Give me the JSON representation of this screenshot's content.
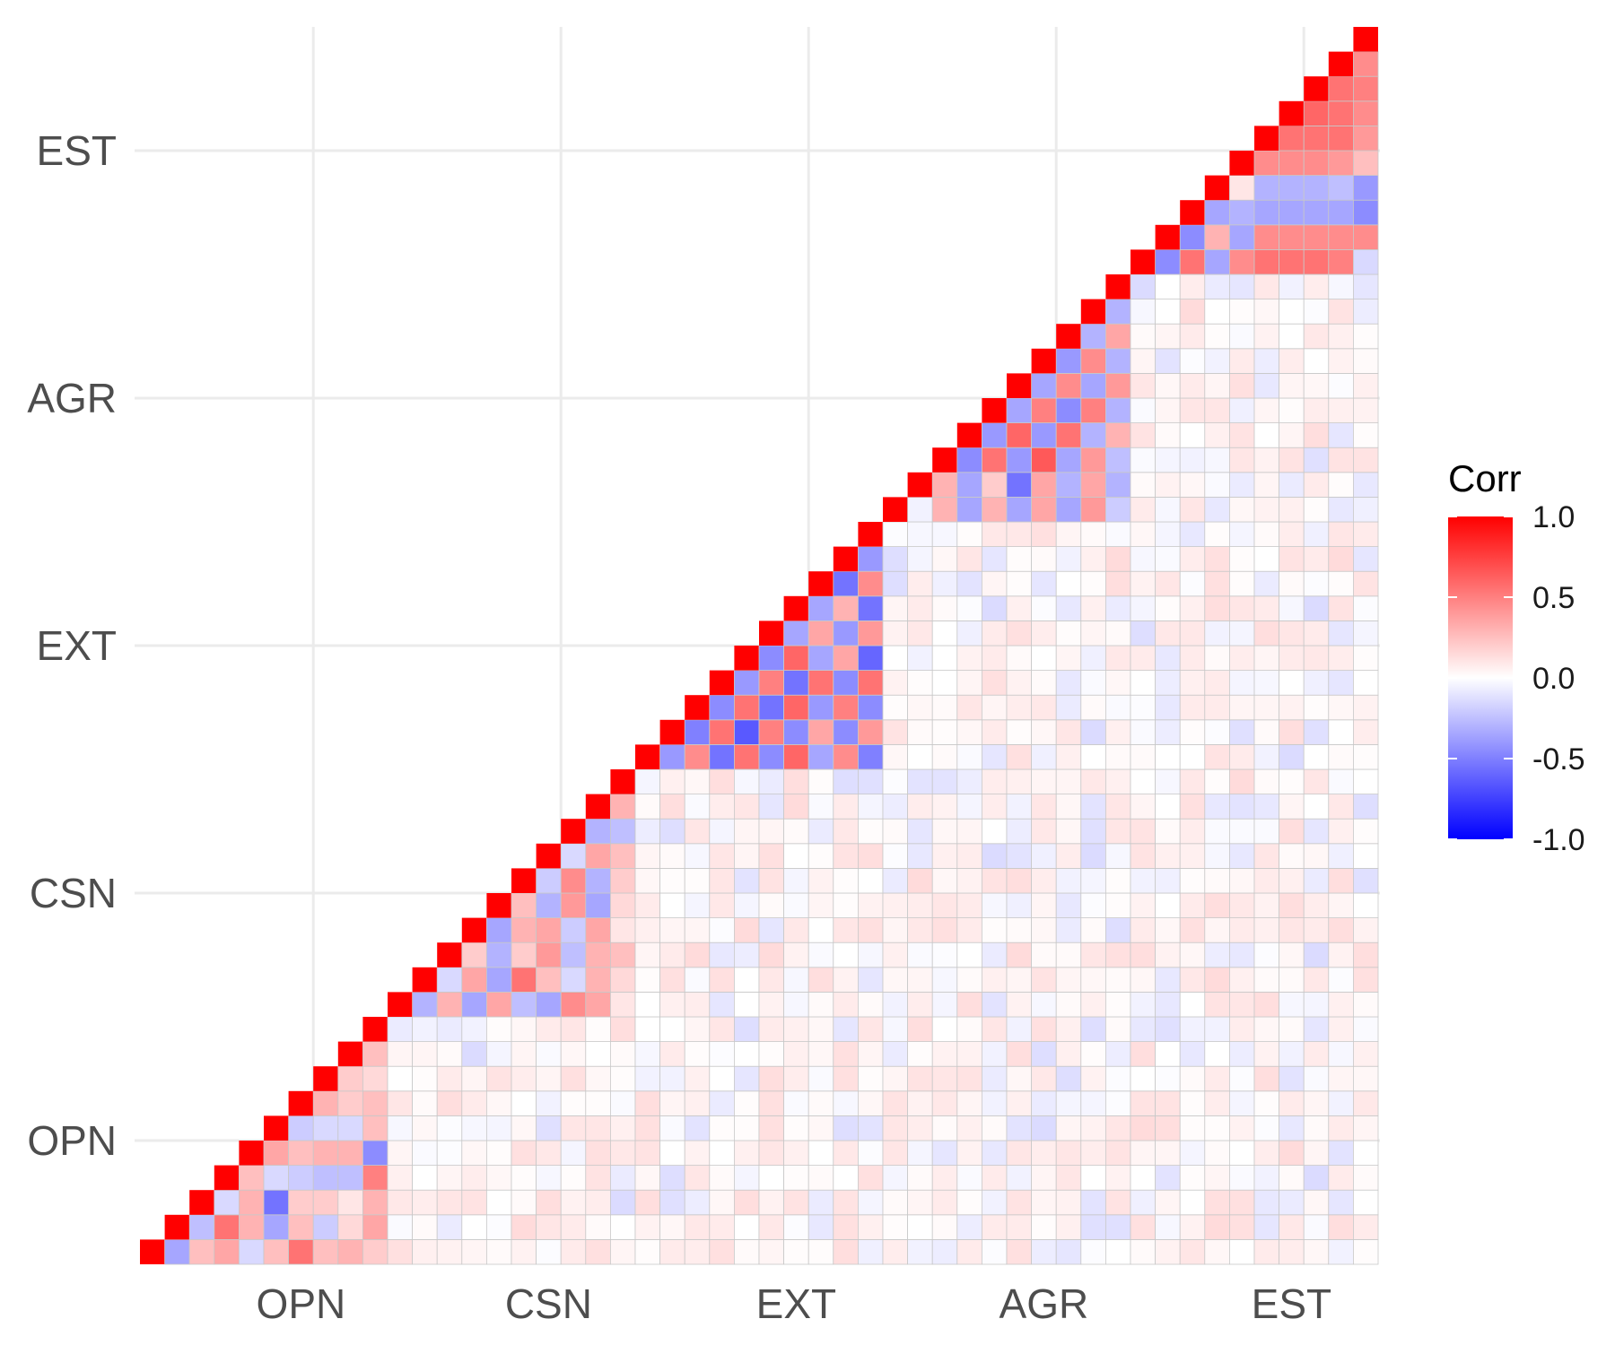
{
  "chart_data": {
    "type": "heatmap",
    "title": "",
    "xlabel": "",
    "ylabel": "",
    "layout": "lower-triangle correlation matrix (diagonal at bottom-left to top-right)",
    "n_items": 50,
    "groups": [
      "OPN",
      "CSN",
      "EXT",
      "AGR",
      "EST"
    ],
    "group_size": 10,
    "diagonal_value": 1.0,
    "grid": true,
    "legend": {
      "title": "Corr",
      "position": "right",
      "ticks": [
        "1.0",
        "0.5",
        "0.0",
        "-0.5",
        "-1.0"
      ],
      "tick_values": [
        1.0,
        0.5,
        0.0,
        -0.5,
        -1.0
      ],
      "colors": {
        "low": "#0000ff",
        "mid": "#ffffff",
        "high": "#ff0000"
      }
    },
    "within_block_correlations": {
      "OPN": [
        [
          -0.35,
          0.25,
          0.35,
          -0.15,
          0.25,
          0.55,
          0.25,
          0.3,
          0.2
        ],
        [
          -0.25,
          0.55,
          0.3,
          -0.35,
          0.25,
          -0.2,
          0.15,
          0.35
        ],
        [
          -0.15,
          0.3,
          -0.55,
          0.2,
          0.2,
          0.1,
          0.3
        ],
        [
          0.25,
          -0.15,
          -0.2,
          -0.25,
          -0.25,
          0.5
        ],
        [
          0.35,
          0.25,
          0.3,
          0.3,
          -0.45
        ],
        [
          -0.2,
          -0.15,
          -0.15,
          0.25
        ],
        [
          0.3,
          0.2,
          0.25
        ],
        [
          0.2,
          0.15
        ],
        [
          0.25
        ]
      ],
      "CSN": [
        [
          -0.3,
          0.3,
          -0.35,
          0.35,
          -0.25,
          -0.35,
          0.45,
          0.35,
          0.1
        ],
        [
          -0.15,
          0.35,
          -0.35,
          0.55,
          0.25,
          -0.15,
          0.3,
          0.15
        ],
        [
          0.2,
          -0.3,
          0.2,
          0.4,
          -0.25,
          0.3,
          0.25
        ],
        [
          -0.35,
          0.3,
          0.35,
          -0.2,
          0.35,
          0.1
        ],
        [
          0.25,
          -0.3,
          0.4,
          -0.35,
          0.15
        ],
        [
          -0.2,
          0.45,
          -0.3,
          0.2
        ],
        [
          -0.15,
          0.35,
          0.25
        ],
        [
          -0.3,
          -0.25
        ],
        [
          0.3
        ]
      ],
      "EXT": [
        [
          -0.4,
          0.45,
          -0.55,
          0.55,
          -0.45,
          0.6,
          -0.35,
          0.45,
          -0.5
        ],
        [
          -0.5,
          0.55,
          -0.65,
          0.5,
          -0.45,
          0.35,
          -0.45,
          0.4
        ],
        [
          -0.45,
          0.55,
          -0.55,
          0.6,
          -0.4,
          0.5,
          -0.45
        ],
        [
          -0.4,
          0.5,
          -0.55,
          0.55,
          -0.45,
          0.55
        ],
        [
          -0.45,
          0.6,
          -0.35,
          0.35,
          -0.6
        ],
        [
          -0.35,
          0.35,
          -0.4,
          0.4
        ],
        [
          -0.35,
          0.3,
          -0.55
        ],
        [
          -0.55,
          0.45
        ],
        [
          -0.4
        ]
      ],
      "AGR": [
        [
          -0.05,
          0.3,
          -0.35,
          0.3,
          -0.35,
          0.35,
          -0.35,
          0.4,
          -0.2
        ],
        [
          0.3,
          -0.35,
          0.2,
          -0.55,
          0.35,
          -0.3,
          0.35,
          -0.3
        ],
        [
          -0.45,
          0.55,
          -0.4,
          0.65,
          -0.35,
          0.4,
          -0.25
        ],
        [
          -0.4,
          0.6,
          -0.4,
          0.55,
          -0.3,
          0.3
        ],
        [
          -0.35,
          0.5,
          -0.45,
          0.5,
          -0.3
        ],
        [
          -0.35,
          0.45,
          -0.35,
          0.4
        ],
        [
          -0.4,
          0.45,
          -0.3
        ],
        [
          -0.3,
          0.35
        ],
        [
          -0.3
        ]
      ],
      "EST": [
        [
          -0.45,
          0.55,
          -0.35,
          0.45,
          0.55,
          0.55,
          0.55,
          0.5,
          -0.15
        ],
        [
          -0.45,
          0.3,
          -0.35,
          0.45,
          0.45,
          0.45,
          0.45,
          0.45
        ],
        [
          -0.35,
          -0.3,
          -0.35,
          -0.35,
          -0.35,
          -0.35,
          -0.45
        ],
        [
          0.1,
          -0.3,
          -0.3,
          -0.3,
          -0.25,
          -0.4
        ],
        [
          0.45,
          0.45,
          0.45,
          0.4,
          0.25
        ],
        [
          0.55,
          0.55,
          0.55,
          0.4
        ],
        [
          0.6,
          0.55,
          0.45
        ],
        [
          0.55,
          0.5
        ],
        [
          0.45
        ]
      ]
    },
    "between_block_mean_abs_correlation": 0.07
  }
}
